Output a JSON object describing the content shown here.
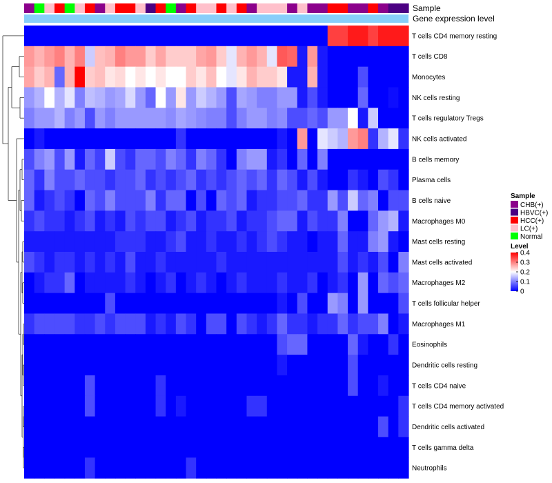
{
  "chart_data": {
    "type": "heatmap",
    "annotations": {
      "sample_label": "Sample",
      "gene_label": "Gene expression level",
      "sample_groups": [
        "CHB(+)",
        "Normal",
        "LC(+)",
        "HCC(+)",
        "Normal",
        "LC(+)",
        "HCC(+)",
        "CHB(+)",
        "LC(+)",
        "HCC(+)",
        "HCC(+)",
        "LC(+)",
        "HBVC(+)",
        "HCC(+)",
        "Normal",
        "CHB(+)",
        "HCC(+)",
        "LC(+)",
        "LC(+)",
        "HCC(+)",
        "LC(+)",
        "HCC(+)",
        "CHB(+)",
        "LC(+)",
        "LC(+)",
        "LC(+)",
        "CHB(+)",
        "LC(+)",
        "CHB(+)",
        "CHB(+)",
        "HCC(+)",
        "HCC(+)",
        "CHB(+)",
        "CHB(+)",
        "HCC(+)",
        "CHB(+)",
        "HBVC(+)",
        "HBVC(+)"
      ]
    },
    "row_labels": [
      "T cells CD4 memory resting",
      "T cells CD8",
      "Monocytes",
      "NK cells resting",
      "T cells regulatory  Tregs",
      "NK cells activated",
      "B cells memory",
      "Plasma cells",
      "B cells naive",
      "Macrophages M0",
      "Mast cells resting",
      "Mast cells activated",
      "Macrophages M2",
      "T cells follicular helper",
      "Macrophages M1",
      "Eosinophils",
      "Dendritic cells resting",
      "T cells CD4 naive",
      "T cells CD4 memory activated",
      "Dendritic cells activated",
      "T cells gamma delta",
      "Neutrophils"
    ],
    "legend": {
      "sample_title": "Sample",
      "sample_entries": [
        {
          "name": "CHB(+)",
          "color": "#8B008B"
        },
        {
          "name": "HBVC(+)",
          "color": "#4B0082"
        },
        {
          "name": "HCC(+)",
          "color": "#FF0000"
        },
        {
          "name": "LC(+)",
          "color": "#FFC0CB"
        },
        {
          "name": "Normal",
          "color": "#00FF00"
        }
      ],
      "level_title": "Level",
      "level_ticks": [
        {
          "value": 0.4,
          "label": "0.4"
        },
        {
          "value": 0.3,
          "label": "0.3"
        },
        {
          "value": 0.2,
          "label": "0.2"
        },
        {
          "value": 0.1,
          "label": "0.1"
        },
        {
          "value": 0,
          "label": "0"
        }
      ],
      "colors": {
        "low": "#0000FF",
        "mid": "#FFFFFF",
        "high": "#FF0000"
      },
      "range": [
        0,
        0.4
      ]
    },
    "gene_bar_color": "#87CEFA",
    "values": [
      [
        0,
        0,
        0,
        0,
        0,
        0,
        0,
        0,
        0,
        0,
        0,
        0,
        0,
        0,
        0,
        0,
        0,
        0,
        0,
        0,
        0,
        0,
        0,
        0,
        0,
        0,
        0,
        0,
        0,
        0,
        0.35,
        0.35,
        0.38,
        0.38,
        0.35,
        0.38,
        0.38,
        0.38
      ],
      [
        0.28,
        0.26,
        0.28,
        0.3,
        0.26,
        0.3,
        0.16,
        0.25,
        0.26,
        0.3,
        0.28,
        0.28,
        0.24,
        0.27,
        0.24,
        0.24,
        0.24,
        0.27,
        0.28,
        0.24,
        0.18,
        0.26,
        0.28,
        0.26,
        0.18,
        0.33,
        0.32,
        0.02,
        0.28,
        0.02,
        0,
        0,
        0,
        0,
        0,
        0,
        0,
        0
      ],
      [
        0.27,
        0.24,
        0.26,
        0.08,
        0.26,
        0.4,
        0.24,
        0.25,
        0.22,
        0.23,
        0.2,
        0.22,
        0.2,
        0.22,
        0.2,
        0.2,
        0.24,
        0.22,
        0.25,
        0.2,
        0.18,
        0.22,
        0.26,
        0.24,
        0.24,
        0.22,
        0.02,
        0.02,
        0.26,
        0.02,
        0,
        0,
        0,
        0.06,
        0,
        0,
        0,
        0
      ],
      [
        0.12,
        0.14,
        0.2,
        0.14,
        0.18,
        0.1,
        0.15,
        0.14,
        0.12,
        0.13,
        0.17,
        0.12,
        0.08,
        0.2,
        0.12,
        0.22,
        0.12,
        0.16,
        0.14,
        0.12,
        0.06,
        0.13,
        0.12,
        0.1,
        0.1,
        0.12,
        0.12,
        0.02,
        0.06,
        0.02,
        0,
        0,
        0,
        0.08,
        0,
        0,
        0.01,
        0
      ],
      [
        0.1,
        0.12,
        0.12,
        0.14,
        0.1,
        0.12,
        0.06,
        0.12,
        0.1,
        0.12,
        0.12,
        0.12,
        0.12,
        0.12,
        0.11,
        0.13,
        0.12,
        0.11,
        0.1,
        0.1,
        0.06,
        0.1,
        0.12,
        0.12,
        0.1,
        0.11,
        0.06,
        0.06,
        0.08,
        0.06,
        0.12,
        0.12,
        0.2,
        0.02,
        0.16,
        0,
        0,
        0
      ],
      [
        0,
        0.02,
        0,
        0,
        0,
        0,
        0,
        0,
        0,
        0,
        0,
        0,
        0,
        0,
        0,
        0.04,
        0,
        0,
        0,
        0,
        0,
        0,
        0,
        0,
        0,
        0.02,
        0,
        0.28,
        0,
        0.18,
        0.16,
        0.14,
        0.28,
        0.3,
        0.04,
        0.14,
        0.18,
        0.04
      ],
      [
        0.06,
        0.1,
        0.12,
        0.06,
        0.12,
        0.02,
        0.08,
        0.05,
        0.16,
        0.06,
        0.04,
        0.08,
        0.08,
        0.06,
        0.1,
        0.08,
        0.04,
        0.1,
        0.08,
        0.04,
        0,
        0.1,
        0.12,
        0.12,
        0.02,
        0.04,
        0,
        0.08,
        0,
        0.1,
        0,
        0,
        0,
        0,
        0,
        0,
        0,
        0
      ],
      [
        0.08,
        0.04,
        0.1,
        0.06,
        0.06,
        0.08,
        0.06,
        0.06,
        0.04,
        0.06,
        0.06,
        0.08,
        0.04,
        0.06,
        0.04,
        0.06,
        0.08,
        0.04,
        0.06,
        0.04,
        0.06,
        0.08,
        0.06,
        0.08,
        0.04,
        0.08,
        0.06,
        0.02,
        0.06,
        0.02,
        0,
        0,
        0.04,
        0.02,
        0,
        0.06,
        0.04,
        0
      ],
      [
        0.08,
        0.02,
        0.04,
        0.06,
        0.04,
        0,
        0.08,
        0.06,
        0.1,
        0.06,
        0.06,
        0.06,
        0.1,
        0.04,
        0.08,
        0.08,
        0,
        0.06,
        0,
        0.08,
        0.06,
        0.08,
        0.02,
        0.04,
        0.04,
        0.06,
        0.06,
        0.08,
        0.04,
        0.04,
        0.12,
        0.06,
        0.16,
        0.08,
        0.1,
        0,
        0.06,
        0.06
      ],
      [
        0.04,
        0.06,
        0.04,
        0.04,
        0.02,
        0.04,
        0.06,
        0.02,
        0.04,
        0.02,
        0.06,
        0.04,
        0.06,
        0.06,
        0.02,
        0.04,
        0.06,
        0.02,
        0.04,
        0.04,
        0.06,
        0.02,
        0.04,
        0.04,
        0.06,
        0.08,
        0.08,
        0.02,
        0.06,
        0.04,
        0.04,
        0.1,
        0,
        0,
        0.08,
        0.12,
        0.14,
        0.02
      ],
      [
        0.02,
        0.02,
        0.02,
        0.02,
        0.02,
        0.02,
        0.02,
        0.02,
        0.02,
        0.04,
        0.04,
        0.04,
        0.02,
        0.02,
        0.04,
        0.06,
        0.02,
        0.02,
        0.04,
        0.02,
        0.02,
        0.04,
        0.02,
        0.04,
        0.06,
        0.04,
        0.02,
        0.02,
        0,
        0.02,
        0.02,
        0.08,
        0.02,
        0.02,
        0.1,
        0.12,
        0.02,
        0
      ],
      [
        0.06,
        0.04,
        0.02,
        0.04,
        0.04,
        0.02,
        0.04,
        0.02,
        0.04,
        0.02,
        0.06,
        0.02,
        0.02,
        0.04,
        0.02,
        0.02,
        0.02,
        0.02,
        0.02,
        0.04,
        0.02,
        0.02,
        0.02,
        0.02,
        0.02,
        0.02,
        0.02,
        0.02,
        0.02,
        0.02,
        0.02,
        0.06,
        0.02,
        0.04,
        0.02,
        0.06,
        0,
        0.1
      ],
      [
        0,
        0.02,
        0.04,
        0.04,
        0.08,
        0,
        0.02,
        0.02,
        0.02,
        0.02,
        0.04,
        0.02,
        0,
        0.02,
        0.04,
        0,
        0.02,
        0.04,
        0.02,
        0,
        0.02,
        0.04,
        0.02,
        0.02,
        0.02,
        0.04,
        0.02,
        0.02,
        0.04,
        0,
        0.02,
        0.04,
        0,
        0.12,
        0,
        0.08,
        0.06,
        0.08
      ],
      [
        0,
        0,
        0,
        0,
        0,
        0,
        0,
        0,
        0.06,
        0,
        0,
        0,
        0,
        0,
        0,
        0,
        0,
        0,
        0,
        0,
        0,
        0,
        0,
        0,
        0,
        0.02,
        0,
        0.06,
        0,
        0,
        0.12,
        0.1,
        0,
        0.12,
        0,
        0,
        0,
        0.06
      ],
      [
        0.04,
        0.06,
        0.06,
        0.06,
        0.06,
        0.04,
        0.04,
        0.06,
        0.04,
        0.06,
        0.06,
        0.06,
        0.02,
        0.04,
        0.02,
        0.06,
        0.04,
        0,
        0.06,
        0.06,
        0,
        0.06,
        0.04,
        0.02,
        0.04,
        0.08,
        0.04,
        0.04,
        0.02,
        0.04,
        0.04,
        0.08,
        0.04,
        0.06,
        0.06,
        0.1,
        0,
        0.02
      ],
      [
        0,
        0,
        0,
        0,
        0,
        0,
        0,
        0,
        0,
        0,
        0,
        0,
        0,
        0,
        0,
        0,
        0,
        0,
        0,
        0,
        0,
        0,
        0,
        0,
        0,
        0.06,
        0.08,
        0.08,
        0,
        0,
        0,
        0,
        0.08,
        0.02,
        0,
        0,
        0.04,
        0
      ],
      [
        0,
        0,
        0,
        0,
        0,
        0,
        0,
        0,
        0,
        0,
        0,
        0,
        0,
        0,
        0,
        0,
        0,
        0,
        0,
        0,
        0,
        0,
        0,
        0,
        0,
        0.02,
        0,
        0,
        0,
        0,
        0,
        0,
        0.06,
        0,
        0,
        0,
        0,
        0
      ],
      [
        0,
        0,
        0,
        0,
        0,
        0,
        0.06,
        0,
        0,
        0,
        0,
        0,
        0,
        0.04,
        0,
        0,
        0,
        0,
        0,
        0,
        0,
        0,
        0,
        0,
        0,
        0,
        0,
        0,
        0,
        0,
        0,
        0,
        0.06,
        0,
        0,
        0.02,
        0,
        0
      ],
      [
        0,
        0,
        0,
        0,
        0,
        0,
        0.06,
        0,
        0,
        0,
        0,
        0,
        0,
        0.04,
        0,
        0.02,
        0,
        0,
        0,
        0,
        0,
        0,
        0.04,
        0.04,
        0,
        0,
        0,
        0,
        0,
        0,
        0,
        0,
        0,
        0,
        0,
        0,
        0,
        0.04
      ],
      [
        0,
        0,
        0,
        0,
        0,
        0,
        0,
        0,
        0,
        0,
        0,
        0,
        0,
        0,
        0,
        0,
        0,
        0,
        0,
        0,
        0,
        0,
        0,
        0,
        0,
        0,
        0,
        0,
        0,
        0,
        0,
        0,
        0,
        0,
        0,
        0.06,
        0,
        0.04
      ],
      [
        0,
        0,
        0,
        0,
        0,
        0,
        0,
        0,
        0,
        0,
        0,
        0,
        0,
        0,
        0,
        0,
        0,
        0,
        0,
        0,
        0,
        0,
        0,
        0,
        0,
        0,
        0,
        0,
        0,
        0,
        0,
        0,
        0,
        0,
        0,
        0,
        0,
        0
      ],
      [
        0,
        0,
        0,
        0,
        0,
        0,
        0.04,
        0,
        0,
        0,
        0,
        0,
        0,
        0,
        0,
        0,
        0.04,
        0,
        0,
        0,
        0,
        0,
        0,
        0,
        0,
        0,
        0,
        0,
        0,
        0,
        0,
        0,
        0,
        0,
        0,
        0,
        0,
        0
      ]
    ]
  }
}
